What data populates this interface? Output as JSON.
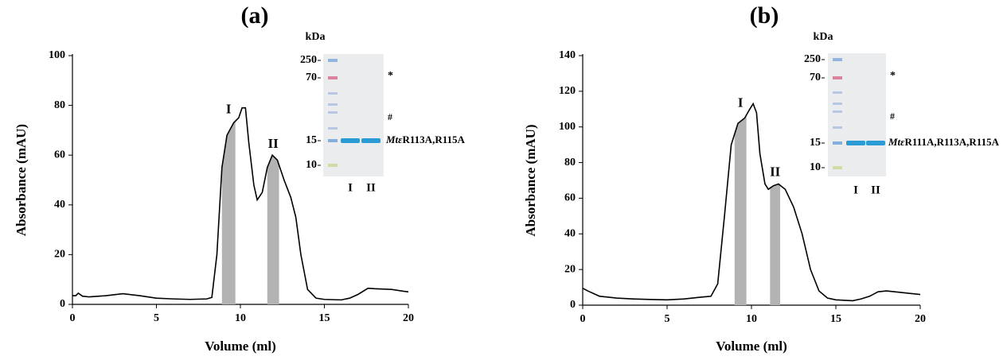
{
  "chart_data": [
    {
      "type": "line",
      "title": "(a)",
      "x_label": "Volume (ml)",
      "y_label": "Absorbance (mAU)",
      "xlim": [
        0,
        20
      ],
      "ylim": [
        0,
        100
      ],
      "xticks": [
        0,
        5,
        10,
        15,
        20
      ],
      "yticks": [
        0,
        20,
        40,
        60,
        80,
        100
      ],
      "color": "#000000",
      "region_color": "#b3b3b3",
      "x": [
        0,
        0.2,
        0.35,
        0.6,
        1,
        2,
        3,
        4,
        5,
        6,
        7,
        8,
        8.3,
        8.6,
        8.9,
        9.2,
        9.6,
        9.9,
        10.1,
        10.3,
        10.5,
        10.8,
        11.0,
        11.3,
        11.6,
        11.9,
        12.2,
        12.6,
        13.0,
        13.3,
        13.6,
        14.0,
        14.5,
        15,
        16,
        16.5,
        17,
        17.6,
        18,
        19,
        20
      ],
      "values": [
        3.5,
        3.5,
        4.5,
        3.3,
        3,
        3.5,
        4.3,
        3.5,
        2.5,
        2.2,
        2,
        2.2,
        2.8,
        20,
        55,
        68,
        73,
        75,
        79,
        79,
        65,
        48,
        42,
        45,
        55,
        60,
        58,
        50,
        43,
        35,
        20,
        6,
        2.5,
        2,
        1.8,
        2.5,
        4,
        6.5,
        6.3,
        6,
        5
      ],
      "regions": [
        {
          "label": "I",
          "x": [
            8.9,
            9.7
          ]
        },
        {
          "label": "II",
          "x": [
            11.6,
            12.3
          ]
        }
      ],
      "inset": {
        "unit": "kDa",
        "markers": [
          "250",
          "70",
          "15",
          "10"
        ],
        "star": "*",
        "hash": "#",
        "protein": {
          "italic": "Mtε",
          "text": "R113A,R115A"
        },
        "lanes": [
          "I",
          "II"
        ]
      }
    },
    {
      "type": "line",
      "title": "(b)",
      "x_label": "Volume (ml)",
      "y_label": "Absorbance (mAU)",
      "xlim": [
        0,
        20
      ],
      "ylim": [
        0,
        140
      ],
      "xticks": [
        0,
        5,
        10,
        15,
        20
      ],
      "yticks": [
        0,
        20,
        40,
        60,
        80,
        100,
        120,
        140
      ],
      "color": "#000000",
      "region_color": "#b3b3b3",
      "x": [
        0,
        0.3,
        1,
        2,
        3,
        4,
        5,
        6,
        7,
        7.6,
        8.0,
        8.4,
        8.8,
        9.2,
        9.6,
        9.9,
        10.1,
        10.3,
        10.5,
        10.8,
        11.0,
        11.3,
        11.6,
        12.0,
        12.5,
        13.0,
        13.5,
        14.0,
        14.5,
        15,
        16,
        16.5,
        17,
        17.5,
        18,
        19,
        20
      ],
      "values": [
        9.5,
        8,
        5,
        4,
        3.5,
        3.2,
        3,
        3.5,
        4.5,
        5,
        12,
        50,
        90,
        102,
        105,
        110,
        113,
        108,
        85,
        68,
        65,
        67,
        68,
        65,
        55,
        40,
        20,
        8,
        4,
        3,
        2.5,
        3.5,
        5,
        7.5,
        8,
        7,
        6
      ],
      "regions": [
        {
          "label": "I",
          "x": [
            9.0,
            9.7
          ]
        },
        {
          "label": "II",
          "x": [
            11.1,
            11.7
          ]
        }
      ],
      "inset": {
        "unit": "kDa",
        "markers": [
          "250",
          "70",
          "15",
          "10"
        ],
        "star": "*",
        "hash": "#",
        "protein": {
          "italic": "Mtε",
          "text": "R111A,R113A,R115A"
        },
        "lanes": [
          "I",
          "II"
        ]
      }
    }
  ]
}
